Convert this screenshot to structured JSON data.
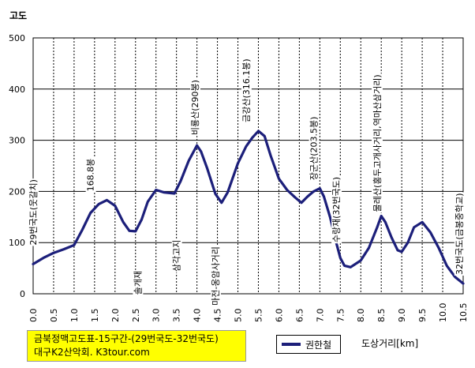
{
  "chart_data": {
    "type": "line",
    "ylabel": "고도",
    "xlabel": "도상거리[km]",
    "xlim": [
      0,
      10.5
    ],
    "ylim": [
      0,
      500
    ],
    "x_ticks": [
      "0.0",
      "0.5",
      "1.0",
      "1.5",
      "2.0",
      "2.5",
      "3.0",
      "3.5",
      "4.0",
      "4.5",
      "5.0",
      "5.5",
      "6.0",
      "6.5",
      "7.0",
      "7.5",
      "8.0",
      "8.5",
      "9.0",
      "9.5",
      "10.0",
      "10.5"
    ],
    "y_ticks": [
      "0",
      "100",
      "200",
      "300",
      "400",
      "500"
    ],
    "grid": true,
    "series": [
      {
        "name": "권한철",
        "color": "#1c1f7a",
        "x": [
          0.0,
          0.25,
          0.5,
          0.75,
          1.0,
          1.2,
          1.4,
          1.6,
          1.8,
          2.0,
          2.2,
          2.35,
          2.5,
          2.65,
          2.8,
          3.0,
          3.2,
          3.45,
          3.6,
          3.8,
          4.0,
          4.1,
          4.25,
          4.45,
          4.6,
          4.75,
          5.0,
          5.2,
          5.35,
          5.5,
          5.65,
          5.8,
          6.0,
          6.2,
          6.4,
          6.55,
          6.7,
          6.85,
          7.0,
          7.1,
          7.25,
          7.4,
          7.5,
          7.6,
          7.75,
          8.0,
          8.2,
          8.4,
          8.5,
          8.6,
          8.75,
          8.9,
          9.0,
          9.15,
          9.3,
          9.5,
          9.7,
          9.9,
          10.1,
          10.3,
          10.5
        ],
        "y": [
          58,
          70,
          80,
          87,
          95,
          125,
          158,
          175,
          183,
          172,
          140,
          123,
          122,
          145,
          180,
          203,
          198,
          196,
          220,
          260,
          290,
          278,
          245,
          195,
          178,
          198,
          255,
          288,
          305,
          318,
          308,
          270,
          225,
          203,
          188,
          178,
          190,
          200,
          206,
          190,
          150,
          100,
          70,
          55,
          52,
          65,
          90,
          130,
          152,
          140,
          110,
          85,
          82,
          100,
          130,
          140,
          120,
          90,
          55,
          33,
          20
        ]
      }
    ],
    "annotations": [
      {
        "text": "29번국도(웃갈치)",
        "x": 0.0,
        "y": 95
      },
      {
        "text": "168.8봉",
        "x": 1.4,
        "y": 200
      },
      {
        "text": "솔개재",
        "x": 2.55,
        "y": -2
      },
      {
        "text": "삼각고지",
        "x": 3.5,
        "y": 43
      },
      {
        "text": "비룡산(290봉)",
        "x": 3.95,
        "y": 310
      },
      {
        "text": "마전-옹암사거리",
        "x": 4.45,
        "y": -23
      },
      {
        "text": "금강산(316.1봉)",
        "x": 5.2,
        "y": 335
      },
      {
        "text": "장군산(203.5봉)",
        "x": 6.85,
        "y": 222
      },
      {
        "text": "수랑재(32번국도)",
        "x": 7.4,
        "y": 100
      },
      {
        "text": "물레산(홍두고개사거리,역마산삼거리)",
        "x": 8.4,
        "y": 160
      },
      {
        "text": "32번국도(금봉중학교)",
        "x": 10.4,
        "y": 37
      }
    ]
  },
  "title_box": {
    "line1": "금북정맥고도표-15구간-(29번국도-32번국도)",
    "line2": "대구K2산악회. K3tour.com"
  },
  "legend": {
    "label": "권한철"
  },
  "colors": {
    "line": "#1c1f7a",
    "title_bg": "#ffff00",
    "grid": "#000000"
  }
}
